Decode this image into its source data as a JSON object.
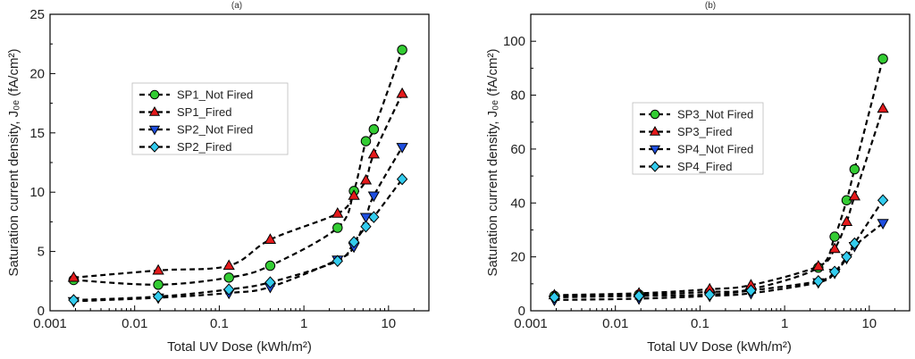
{
  "chart_data": [
    {
      "type": "scatter",
      "panel_label": "(a)",
      "xlabel": "Total UV Dose (kWh/m²)",
      "ylabel": "Saturation current density, J₀ₑ (fA/cm²)",
      "xscale": "log",
      "xlim": [
        0.001,
        30
      ],
      "ylim": [
        0,
        25
      ],
      "xticks": [
        0.001,
        0.01,
        0.1,
        1,
        10
      ],
      "xtick_labels": [
        "0.001",
        "0.01",
        "0.1",
        "1",
        "10"
      ],
      "yticks": [
        0,
        5,
        10,
        15,
        20,
        25
      ],
      "ytick_labels": [
        "0",
        "5",
        "10",
        "15",
        "20",
        "25"
      ],
      "legend_position": "upper-left-center",
      "series": [
        {
          "name": "SP1_Not Fired",
          "marker": "circle",
          "color": "#33cc33",
          "x": [
            0.0019,
            0.019,
            0.13,
            0.4,
            2.5,
            3.9,
            5.4,
            6.7,
            14.5
          ],
          "y": [
            2.6,
            2.2,
            2.8,
            3.8,
            7.0,
            10.1,
            14.3,
            15.3,
            22.0
          ]
        },
        {
          "name": "SP1_Fired",
          "marker": "triangle-up",
          "color": "#e41a1c",
          "x": [
            0.0019,
            0.019,
            0.13,
            0.4,
            2.5,
            3.9,
            5.4,
            6.7,
            14.5
          ],
          "y": [
            2.8,
            3.4,
            3.8,
            6.0,
            8.2,
            9.7,
            11.0,
            13.2,
            18.3
          ]
        },
        {
          "name": "SP2_Not Fired",
          "marker": "triangle-down",
          "color": "#1f4fe0",
          "x": [
            0.0019,
            0.019,
            0.13,
            0.4,
            2.5,
            3.9,
            5.4,
            6.7,
            14.5
          ],
          "y": [
            0.8,
            1.1,
            1.5,
            2.0,
            4.3,
            5.4,
            7.9,
            9.7,
            13.8
          ]
        },
        {
          "name": "SP2_Fired",
          "marker": "diamond",
          "color": "#33ccee",
          "x": [
            0.0019,
            0.019,
            0.13,
            0.4,
            2.5,
            3.9,
            5.4,
            6.7,
            14.5
          ],
          "y": [
            0.9,
            1.2,
            1.8,
            2.4,
            4.2,
            5.8,
            7.1,
            7.9,
            11.1
          ]
        }
      ]
    },
    {
      "type": "scatter",
      "panel_label": "(b)",
      "xlabel": "Total UV Dose (kWh/m²)",
      "ylabel": "Saturation current density, J₀ₑ (fA/cm²)",
      "xscale": "log",
      "xlim": [
        0.001,
        30
      ],
      "ylim": [
        0,
        110
      ],
      "xticks": [
        0.001,
        0.01,
        0.1,
        1,
        10
      ],
      "xtick_labels": [
        "0.001",
        "0.01",
        "0.1",
        "1",
        "10"
      ],
      "yticks": [
        0,
        20,
        40,
        60,
        80,
        100
      ],
      "ytick_labels": [
        "0",
        "20",
        "40",
        "60",
        "80",
        "100"
      ],
      "legend_position": "center-left",
      "series": [
        {
          "name": "SP3_Not Fired",
          "marker": "circle",
          "color": "#33cc33",
          "x": [
            0.0019,
            0.019,
            0.13,
            0.4,
            2.5,
            3.9,
            5.4,
            6.7,
            14.5
          ],
          "y": [
            5.5,
            6.0,
            7.0,
            8.0,
            16.0,
            27.5,
            41.0,
            52.5,
            93.5
          ]
        },
        {
          "name": "SP3_Fired",
          "marker": "triangle-up",
          "color": "#e41a1c",
          "x": [
            0.0019,
            0.019,
            0.13,
            0.4,
            2.5,
            3.9,
            5.4,
            6.7,
            14.5
          ],
          "y": [
            5.8,
            6.5,
            8.0,
            9.5,
            16.5,
            23.0,
            33.0,
            42.5,
            75.0
          ]
        },
        {
          "name": "SP4_Not Fired",
          "marker": "triangle-down",
          "color": "#1f4fe0",
          "x": [
            0.0019,
            0.019,
            0.13,
            0.4,
            2.5,
            3.9,
            5.4,
            6.7,
            14.5
          ],
          "y": [
            4.0,
            4.5,
            5.5,
            6.5,
            10.5,
            14.0,
            19.5,
            24.0,
            32.5
          ]
        },
        {
          "name": "SP4_Fired",
          "marker": "diamond",
          "color": "#33ccee",
          "x": [
            0.0019,
            0.019,
            0.13,
            0.4,
            2.5,
            3.9,
            5.4,
            6.7,
            14.5
          ],
          "y": [
            5.0,
            5.5,
            6.0,
            7.5,
            11.0,
            14.5,
            20.0,
            25.0,
            41.0
          ]
        }
      ]
    }
  ]
}
